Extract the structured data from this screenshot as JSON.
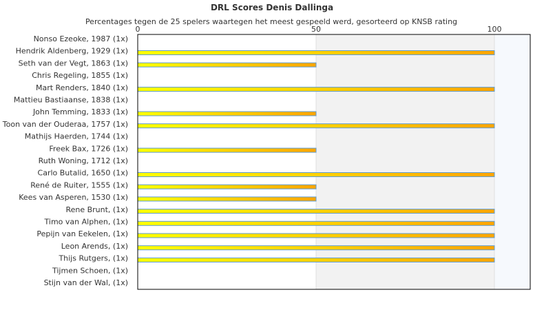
{
  "chart_data": {
    "type": "bar",
    "orientation": "horizontal",
    "title": "DRL Scores Denis Dallinga",
    "subtitle": "Percentages tegen de 25 spelers waartegen het meest gespeeld werd, gesorteerd op KNSB rating",
    "xlim": [
      0,
      110
    ],
    "xticks": [
      "0",
      "50",
      "100"
    ],
    "xtick_values": [
      0,
      50,
      100
    ],
    "categories": [
      "Nonso Ezeoke, 1987 (1x)",
      "Hendrik Aldenberg, 1929 (1x)",
      "Seth van der Vegt, 1863 (1x)",
      "Chris Regeling, 1855 (1x)",
      "Mart Renders, 1840 (1x)",
      "Mattieu Bastiaanse, 1838 (1x)",
      "John Temming, 1833 (1x)",
      "Toon van der Ouderaa, 1757 (1x)",
      "Mathijs Haerden, 1744 (1x)",
      "Freek Bax, 1726 (1x)",
      "Ruth Woning, 1712 (1x)",
      "Carlo Butalid, 1650 (1x)",
      "René de Ruiter, 1555 (1x)",
      "Kees van Asperen, 1530 (1x)",
      "Rene Brunt,  (1x)",
      "Timo van Alphen,  (1x)",
      "Pepijn van Eekelen,  (1x)",
      "Leon Arends,  (1x)",
      "Thijs Rutgers,  (1x)",
      "Tijmen Schoen,  (1x)",
      "Stijn van der Wal,  (1x)"
    ],
    "values": [
      0,
      100,
      50,
      0,
      100,
      0,
      50,
      100,
      0,
      50,
      0,
      100,
      50,
      50,
      100,
      100,
      100,
      100,
      100,
      0,
      0
    ],
    "colors": {
      "bar_start": "#ffff00",
      "bar_end": "#ffa500",
      "bar_border": "#5b9bd5",
      "band_mid": "#f2f2f2",
      "band_high": "#f6f9fd"
    }
  }
}
